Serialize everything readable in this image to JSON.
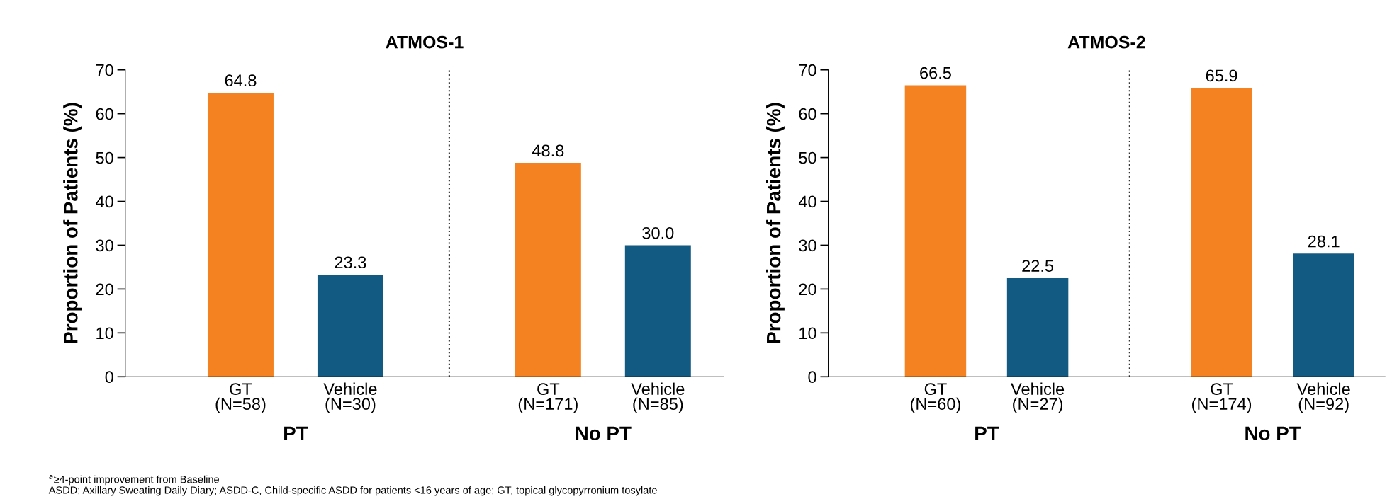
{
  "chart_data": [
    {
      "type": "bar",
      "title": "ATMOS-1",
      "ylabel": "Proportion of Patients (%)",
      "categories": [
        "GT\n(N=58)",
        "Vehicle\n(N=30)",
        "GT\n(N=171)",
        "Vehicle\n(N=85)"
      ],
      "values": [
        64.8,
        23.3,
        48.8,
        30.0
      ],
      "colors": [
        "#f58220",
        "#135a82",
        "#f58220",
        "#135a82"
      ],
      "value_labels": [
        "64.8",
        "23.3",
        "48.8",
        "30.0"
      ],
      "ylim": [
        0,
        70
      ],
      "yticks": [
        0,
        10,
        20,
        30,
        40,
        50,
        60,
        70
      ],
      "annotations": [
        "PT",
        "No PT",
        "$^{a}$≥4-point improvement from Baseline",
        "ASDD; Axillary Sweating Daily Diary; ASDD-C, Child-specific ASDD for patients <16 years of age; GT, topical glycopyrronium tosylate"
      ],
      "grid": false,
      "legend": false
    },
    {
      "type": "bar",
      "title": "ATMOS-2",
      "ylabel": "Proportion of Patients (%)",
      "categories": [
        "GT\n(N=60)",
        "Vehicle\n(N=27)",
        "GT\n(N=174)",
        "Vehicle\n(N=92)"
      ],
      "values": [
        66.5,
        22.5,
        65.9,
        28.1
      ],
      "colors": [
        "#f58220",
        "#135a82",
        "#f58220",
        "#135a82"
      ],
      "value_labels": [
        "66.5",
        "22.5",
        "65.9",
        "28.1"
      ],
      "ylim": [
        0,
        70
      ],
      "yticks": [
        0,
        10,
        20,
        30,
        40,
        50,
        60,
        70
      ],
      "annotations": [
        "PT",
        "No PT"
      ],
      "grid": false,
      "legend": false
    }
  ]
}
